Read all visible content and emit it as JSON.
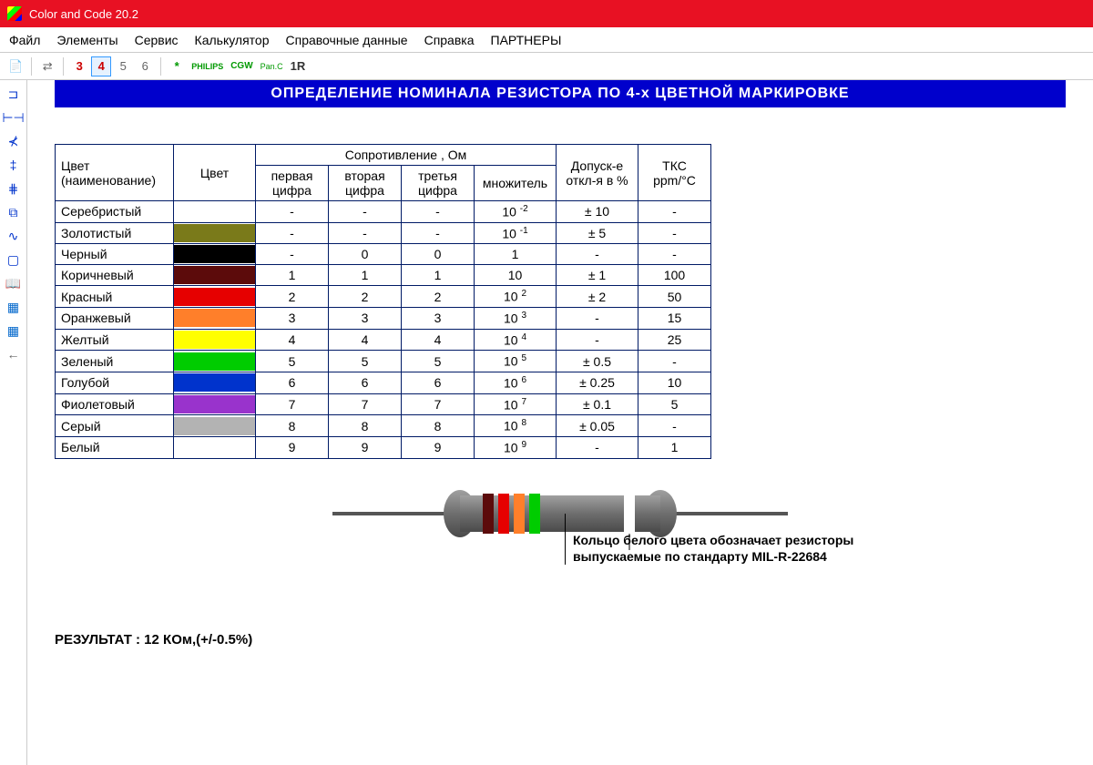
{
  "window": {
    "title": "Color and Code 20.2"
  },
  "menu": [
    "Файл",
    "Элементы",
    "Сервис",
    "Калькулятор",
    "Справочные данные",
    "Справка",
    "ПАРТНЕРЫ"
  ],
  "toolbar": {
    "bands": [
      "3",
      "4",
      "5",
      "6"
    ],
    "selected": "4",
    "extras": [
      "*",
      "PHILIPS",
      "CGW",
      "Pan.C",
      "1R"
    ]
  },
  "sidebar_icons": [
    {
      "name": "resistor-icon",
      "glyph": "⊐",
      "color": "#0033cc"
    },
    {
      "name": "capacitor-icon",
      "glyph": "⊢⊣",
      "color": "#0033cc"
    },
    {
      "name": "diode-icon",
      "glyph": "⊀",
      "color": "#0033cc"
    },
    {
      "name": "inductor-icon",
      "glyph": "‡",
      "color": "#0033cc"
    },
    {
      "name": "transistor-icon",
      "glyph": "⋕",
      "color": "#0033cc"
    },
    {
      "name": "ic-icon",
      "glyph": "⧉",
      "color": "#0033cc"
    },
    {
      "name": "wave-icon",
      "glyph": "∿",
      "color": "#0033cc"
    },
    {
      "name": "box-icon",
      "glyph": "▢",
      "color": "#0033cc"
    },
    {
      "name": "book-icon",
      "glyph": "📖",
      "color": "#333"
    },
    {
      "name": "chip-icon",
      "glyph": "▦",
      "color": "#0066cc"
    },
    {
      "name": "chip2-icon",
      "glyph": "▦",
      "color": "#0066cc"
    },
    {
      "name": "arrow-left-icon",
      "glyph": "←",
      "color": "#666"
    }
  ],
  "banner": "ОПРЕДЕЛЕНИЕ НОМИНАЛА РЕЗИСТОРА ПО 4-х ЦВЕТНОЙ МАРКИРОВКЕ",
  "table": {
    "header1": {
      "name": "Цвет\n(наименование)",
      "swatch": "Цвет",
      "resist": "Сопротивление , Ом",
      "tol": "Допуск-е\nоткл-я в %",
      "tks": "ТКС\nppm/°C"
    },
    "header2": {
      "d1": "первая\nцифра",
      "d2": "вторая\nцифра",
      "d3": "третья\nцифра",
      "mult": "множитель"
    },
    "rows": [
      {
        "name": "Серебристый",
        "color": "",
        "d1": "-",
        "d2": "-",
        "d3": "-",
        "mult": "10",
        "exp": "-2",
        "tol": "± 10",
        "tks": "-"
      },
      {
        "name": "Золотистый",
        "color": "#7a7a1a",
        "d1": "-",
        "d2": "-",
        "d3": "-",
        "mult": "10",
        "exp": "-1",
        "tol": "± 5",
        "tks": "-"
      },
      {
        "name": "Черный",
        "color": "#000000",
        "d1": "-",
        "d2": "0",
        "d3": "0",
        "mult": "1",
        "exp": "",
        "tol": "-",
        "tks": "-"
      },
      {
        "name": "Коричневый",
        "color": "#5c0b0b",
        "d1": "1",
        "d2": "1",
        "d3": "1",
        "mult": "10",
        "exp": "",
        "tol": "± 1",
        "tks": "100"
      },
      {
        "name": "Красный",
        "color": "#e60000",
        "d1": "2",
        "d2": "2",
        "d3": "2",
        "mult": "10",
        "exp": "2",
        "tol": "± 2",
        "tks": "50"
      },
      {
        "name": "Оранжевый",
        "color": "#ff7f2a",
        "d1": "3",
        "d2": "3",
        "d3": "3",
        "mult": "10",
        "exp": "3",
        "tol": "-",
        "tks": "15"
      },
      {
        "name": "Желтый",
        "color": "#ffff00",
        "d1": "4",
        "d2": "4",
        "d3": "4",
        "mult": "10",
        "exp": "4",
        "tol": "-",
        "tks": "25"
      },
      {
        "name": "Зеленый",
        "color": "#00cc00",
        "d1": "5",
        "d2": "5",
        "d3": "5",
        "mult": "10",
        "exp": "5",
        "tol": "± 0.5",
        "tks": "-"
      },
      {
        "name": "Голубой",
        "color": "#0033cc",
        "d1": "6",
        "d2": "6",
        "d3": "6",
        "mult": "10",
        "exp": "6",
        "tol": "± 0.25",
        "tks": "10"
      },
      {
        "name": "Фиолетовый",
        "color": "#9933cc",
        "d1": "7",
        "d2": "7",
        "d3": "7",
        "mult": "10",
        "exp": "7",
        "tol": "± 0.1",
        "tks": "5"
      },
      {
        "name": "Серый",
        "color": "#b3b3b3",
        "d1": "8",
        "d2": "8",
        "d3": "8",
        "mult": "10",
        "exp": "8",
        "tol": "± 0.05",
        "tks": "-"
      },
      {
        "name": "Белый",
        "color": "#ffffff",
        "d1": "9",
        "d2": "9",
        "d3": "9",
        "mult": "10",
        "exp": "9",
        "tol": "-",
        "tks": "1"
      }
    ]
  },
  "resistor": {
    "body_color": "#6e6e6e",
    "body_color_light": "#a0a0a0",
    "lead_color": "#555",
    "bands": [
      {
        "color": "#5c0b0b"
      },
      {
        "color": "#e60000"
      },
      {
        "color": "#ff7f2a"
      },
      {
        "color": "#00cc00"
      }
    ],
    "tol_band": {
      "color": "#ffffff"
    }
  },
  "note": "Кольцо белого цвета обозначает резисторы выпускаемые по стандарту MIL-R-22684",
  "result": "РЕЗУЛЬТАТ : 12 КОм,(+/-0.5%)"
}
